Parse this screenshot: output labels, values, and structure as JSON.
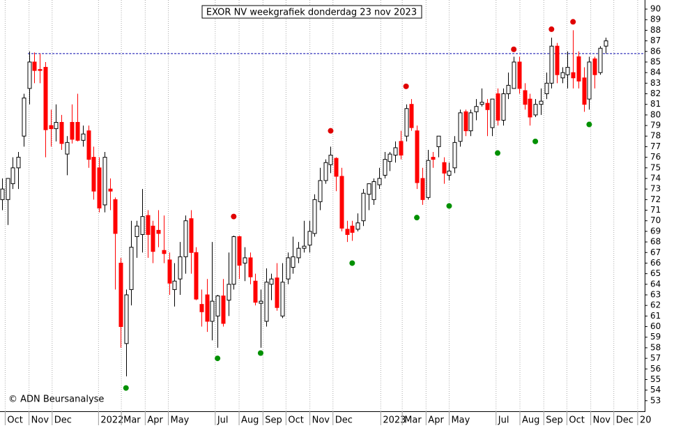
{
  "chart_data": {
    "type": "candlestick",
    "title": "EXOR NV weekgrafiek donderdag 23 nov 2023",
    "credit": "© ADN Beursanalyse",
    "up_color": "#ffffff",
    "down_color": "#ff0000",
    "outline_color": "#000000",
    "open": [
      72,
      72,
      73.5,
      75,
      78,
      82.5,
      85,
      84.3,
      84.5,
      79,
      78.7,
      79.3,
      76.3,
      79.3,
      79.3,
      77.6,
      78.5,
      76,
      75,
      71.5,
      73,
      72,
      66,
      58.4,
      63.5,
      68.5,
      68.7,
      70.5,
      69.5,
      69.1,
      67.2,
      66.3,
      63.5,
      64.5,
      66.6,
      70.2,
      67,
      62.1,
      63,
      60.5,
      61,
      62.9,
      62.5,
      64,
      68.5,
      66,
      66.5,
      64.3,
      62.2,
      60.5,
      64,
      64.6,
      61,
      64.5,
      65.6,
      66.5,
      67.4,
      67.7,
      68.8,
      71.8,
      73.8,
      75.3,
      75.9,
      74.2,
      69.2,
      69.5,
      69.2,
      70,
      72.5,
      72,
      73.4,
      74.3,
      75.6,
      76.2,
      77.5,
      78,
      81,
      78.5,
      74,
      72.2,
      76,
      77,
      75.5,
      74.3,
      75,
      77.5,
      80.3,
      78.5,
      80.3,
      81,
      81.1,
      78.8,
      82,
      79.5,
      82,
      82.5,
      85,
      82.3,
      81.5,
      80,
      81,
      82,
      83,
      86.5,
      83.5,
      83.8,
      84,
      85.5,
      83.5,
      81.5,
      85.3,
      84,
      86.5
    ],
    "high": [
      74,
      74,
      76,
      76.5,
      82,
      86,
      85.9,
      85.8,
      85,
      80.5,
      81,
      80,
      78,
      81,
      82,
      79,
      79,
      77,
      76,
      76.5,
      74,
      72.2,
      66.5,
      63.5,
      70,
      70,
      73,
      71,
      70,
      71,
      70.5,
      67,
      66,
      68,
      70.5,
      71,
      67.5,
      63.5,
      64.5,
      68,
      63,
      64.5,
      67,
      68.6,
      68.6,
      67.5,
      67,
      65,
      63.5,
      65.5,
      65,
      66,
      66,
      67,
      68.5,
      68,
      70,
      70,
      72.5,
      75,
      75.8,
      77,
      76,
      75,
      70,
      70,
      70.7,
      73,
      73.5,
      74,
      75,
      76.5,
      76.5,
      77.5,
      78.5,
      81,
      81.5,
      79,
      75,
      76.7,
      76.5,
      78,
      76,
      75.5,
      78,
      80.5,
      80.5,
      80.5,
      81.5,
      82.5,
      81.5,
      81.5,
      82.5,
      82.5,
      84,
      85.5,
      85.5,
      83,
      82,
      81.5,
      82.5,
      84,
      87.3,
      86.8,
      84.5,
      86,
      88,
      86,
      84.5,
      85.5,
      85.5,
      86.5,
      87.3
    ],
    "low": [
      71,
      69.6,
      73,
      73,
      77,
      81,
      83,
      83,
      76,
      77,
      77.5,
      76.7,
      74.3,
      77.3,
      77.5,
      77,
      75,
      72,
      70.8,
      70.8,
      71,
      63.5,
      58,
      55.3,
      62,
      66.5,
      67,
      66.5,
      66,
      67.5,
      66,
      63,
      61.9,
      63,
      65,
      65,
      62.5,
      60,
      59.5,
      58.7,
      58,
      60,
      61,
      63.5,
      64.5,
      64.3,
      64,
      62,
      58,
      60,
      62.5,
      61.5,
      60.8,
      64,
      65,
      66,
      67,
      67,
      68.5,
      71,
      73.5,
      74.5,
      72.8,
      69,
      68,
      68.1,
      69,
      69.5,
      71,
      71.5,
      73,
      74,
      74.7,
      75.5,
      75.8,
      77.5,
      78.5,
      73,
      71.5,
      72,
      75,
      76,
      73.5,
      73.8,
      74.5,
      77,
      78,
      78,
      79.5,
      80.8,
      78,
      78,
      79,
      79,
      81.5,
      82.5,
      82,
      80.5,
      79,
      79.8,
      80,
      81.5,
      82.5,
      83,
      83,
      82.5,
      82.5,
      82.5,
      80.3,
      80.5,
      82.5,
      83.8,
      85.8
    ],
    "close": [
      73,
      74,
      75,
      76,
      81.6,
      85,
      84.2,
      84.2,
      78.6,
      78.7,
      79.3,
      77.3,
      77.4,
      77.7,
      77.6,
      78.2,
      75.8,
      72.8,
      71.2,
      76,
      72.8,
      68.8,
      60,
      63,
      67.5,
      69.5,
      70.4,
      68.7,
      67.1,
      68.8,
      66.9,
      64.1,
      64.3,
      66.6,
      70,
      67,
      62.6,
      61.4,
      60.5,
      62.4,
      62.9,
      60.3,
      64,
      68.5,
      65.8,
      66.5,
      64.7,
      62.3,
      62.4,
      64.2,
      64.5,
      61.8,
      64.2,
      66.5,
      66.6,
      67.4,
      67.6,
      69,
      72,
      73.8,
      75.5,
      76.2,
      74.2,
      69.3,
      68.7,
      68.9,
      69.8,
      72.6,
      73.5,
      73.7,
      74,
      75.8,
      76.3,
      76.9,
      76.2,
      80.6,
      78.8,
      73.6,
      72,
      75.7,
      75.8,
      78,
      74.5,
      74.7,
      77.4,
      80.2,
      78.5,
      80.2,
      80.8,
      81.2,
      80.5,
      81.5,
      79.5,
      82,
      82.8,
      85,
      82.5,
      81,
      79.8,
      81,
      81.3,
      83,
      86.5,
      83.8,
      84,
      84.5,
      83.5,
      83.2,
      81,
      85,
      83.8,
      86.3,
      87
    ],
    "markers": [
      {
        "x": 43,
        "value": 70.4,
        "color": "#e00000"
      },
      {
        "x": 61,
        "value": 78.5,
        "color": "#e00000"
      },
      {
        "x": 75,
        "value": 82.7,
        "color": "#e00000"
      },
      {
        "x": 95,
        "value": 86.2,
        "color": "#e00000"
      },
      {
        "x": 102,
        "value": 88.1,
        "color": "#e00000"
      },
      {
        "x": 106,
        "value": 88.8,
        "color": "#e00000"
      },
      {
        "x": 23,
        "value": 54.2,
        "color": "#009000"
      },
      {
        "x": 40,
        "value": 57,
        "color": "#009000"
      },
      {
        "x": 48,
        "value": 57.5,
        "color": "#009000"
      },
      {
        "x": 65,
        "value": 66,
        "color": "#009000"
      },
      {
        "x": 77,
        "value": 70.3,
        "color": "#009000"
      },
      {
        "x": 83,
        "value": 71.4,
        "color": "#009000"
      },
      {
        "x": 92,
        "value": 76.4,
        "color": "#009000"
      },
      {
        "x": 99,
        "value": 77.5,
        "color": "#009000"
      },
      {
        "x": 109,
        "value": 79.1,
        "color": "#009000"
      }
    ],
    "hline": {
      "value": 85.8,
      "x_from": 4.8,
      "color": "#0000aa"
    },
    "xlim": [
      -0.39,
      119.3
    ],
    "ylim": [
      52,
      90.86
    ],
    "yticks": [
      53,
      54,
      55,
      56,
      57,
      58,
      59,
      60,
      61,
      62,
      63,
      64,
      65,
      66,
      67,
      68,
      69,
      70,
      71,
      72,
      73,
      74,
      75,
      76,
      77,
      78,
      79,
      80,
      81,
      82,
      83,
      84,
      85,
      86,
      87,
      88,
      89,
      90
    ],
    "xticks": [
      {
        "value": 0.57,
        "label": "Oct"
      },
      {
        "value": 5,
        "label": "Nov"
      },
      {
        "value": 9.29,
        "label": "Dec"
      },
      {
        "value": 17.9,
        "label": "2022"
      },
      {
        "value": 22.14,
        "label": "Mar"
      },
      {
        "value": 26.57,
        "label": "Apr"
      },
      {
        "value": 30.86,
        "label": "May"
      },
      {
        "value": 39.57,
        "label": "Jul"
      },
      {
        "value": 44,
        "label": "Aug"
      },
      {
        "value": 48.43,
        "label": "Sep"
      },
      {
        "value": 52.71,
        "label": "Oct"
      },
      {
        "value": 57.14,
        "label": "Nov"
      },
      {
        "value": 61.43,
        "label": "Dec"
      },
      {
        "value": 70.3,
        "label": "2023"
      },
      {
        "value": 74.29,
        "label": "Mar"
      },
      {
        "value": 78.71,
        "label": "Apr"
      },
      {
        "value": 83,
        "label": "May"
      },
      {
        "value": 91.71,
        "label": "Jul"
      },
      {
        "value": 96.14,
        "label": "Aug"
      },
      {
        "value": 100.57,
        "label": "Sep"
      },
      {
        "value": 104.86,
        "label": "Oct"
      },
      {
        "value": 109.29,
        "label": "Nov"
      },
      {
        "value": 113.57,
        "label": "Dec"
      },
      {
        "value": 118,
        "label": "20"
      }
    ],
    "grid": true
  }
}
